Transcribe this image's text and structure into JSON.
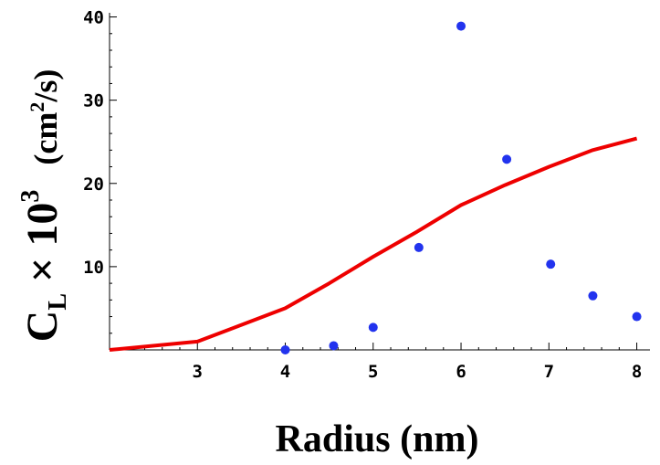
{
  "chart_data": {
    "type": "line",
    "xlabel": "Radius  (nm)",
    "ylabel": {
      "prefix": "C",
      "subscript": "L",
      "times": " × 10",
      "exponent": "3",
      "units_open": "   (cm",
      "units_exp": "2",
      "units_close": "/s)"
    },
    "xlim": [
      2.0,
      8.15
    ],
    "ylim": [
      0,
      40.5
    ],
    "x_ticks": [
      3,
      4,
      5,
      6,
      7,
      8
    ],
    "x_tick_labels": [
      "3",
      "4",
      "5",
      "6",
      "7",
      "8"
    ],
    "y_ticks": [
      0,
      10,
      20,
      30,
      40
    ],
    "y_tick_labels": [
      "",
      "10",
      "20",
      "30",
      "40"
    ],
    "grid": false,
    "series": [
      {
        "style": "line",
        "color": "#ee0000",
        "x": [
          2.0,
          3.0,
          4.0,
          4.5,
          5.0,
          5.5,
          6.0,
          6.5,
          7.0,
          7.5,
          8.0
        ],
        "y": [
          0.0,
          1.0,
          5.0,
          8.0,
          11.2,
          14.2,
          17.4,
          19.8,
          22.0,
          24.0,
          25.4
        ]
      },
      {
        "style": "scatter",
        "color": "#2233ee",
        "x": [
          4.0,
          4.55,
          5.0,
          5.52,
          6.0,
          6.52,
          7.02,
          7.5,
          8.0
        ],
        "y": [
          0.0,
          0.5,
          2.7,
          12.3,
          38.9,
          22.9,
          10.3,
          6.5,
          4.0
        ]
      }
    ]
  }
}
